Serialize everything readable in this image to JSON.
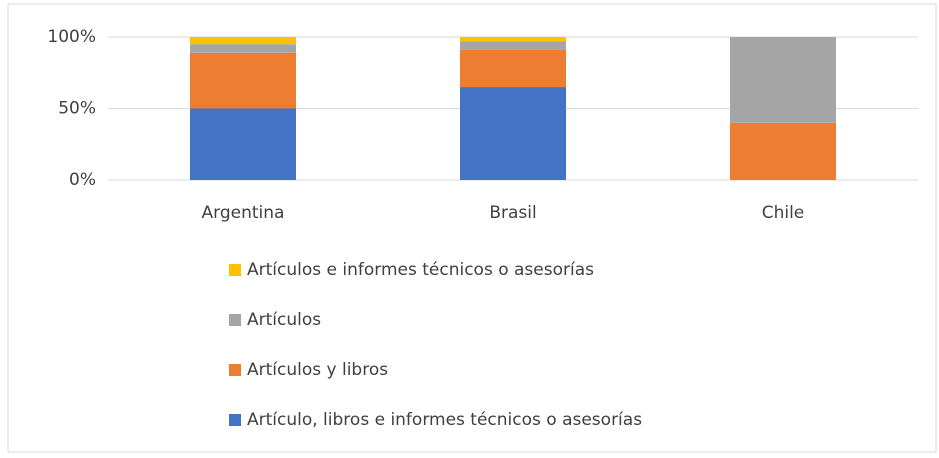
{
  "chart_data": {
    "type": "bar",
    "stacked": true,
    "categories": [
      "Argentina",
      "Brasil",
      "Chile"
    ],
    "series": [
      {
        "name": "Artículo, libros e informes técnicos o asesorías",
        "color": "#4472c4",
        "values": [
          50,
          65,
          0
        ]
      },
      {
        "name": "Artículos y libros",
        "color": "#ed7d31",
        "values": [
          39,
          26,
          40
        ]
      },
      {
        "name": "Artículos",
        "color": "#a5a5a5",
        "values": [
          6,
          6,
          60
        ]
      },
      {
        "name": "Artículos e informes técnicos o asesorías",
        "color": "#ffc000",
        "values": [
          5,
          3,
          0
        ]
      }
    ],
    "ylim": [
      0,
      100
    ],
    "yticks": [
      {
        "value": 0,
        "label": "0%"
      },
      {
        "value": 50,
        "label": "50%"
      },
      {
        "value": 100,
        "label": "100%"
      }
    ],
    "grid": true,
    "legend": "bottom"
  }
}
